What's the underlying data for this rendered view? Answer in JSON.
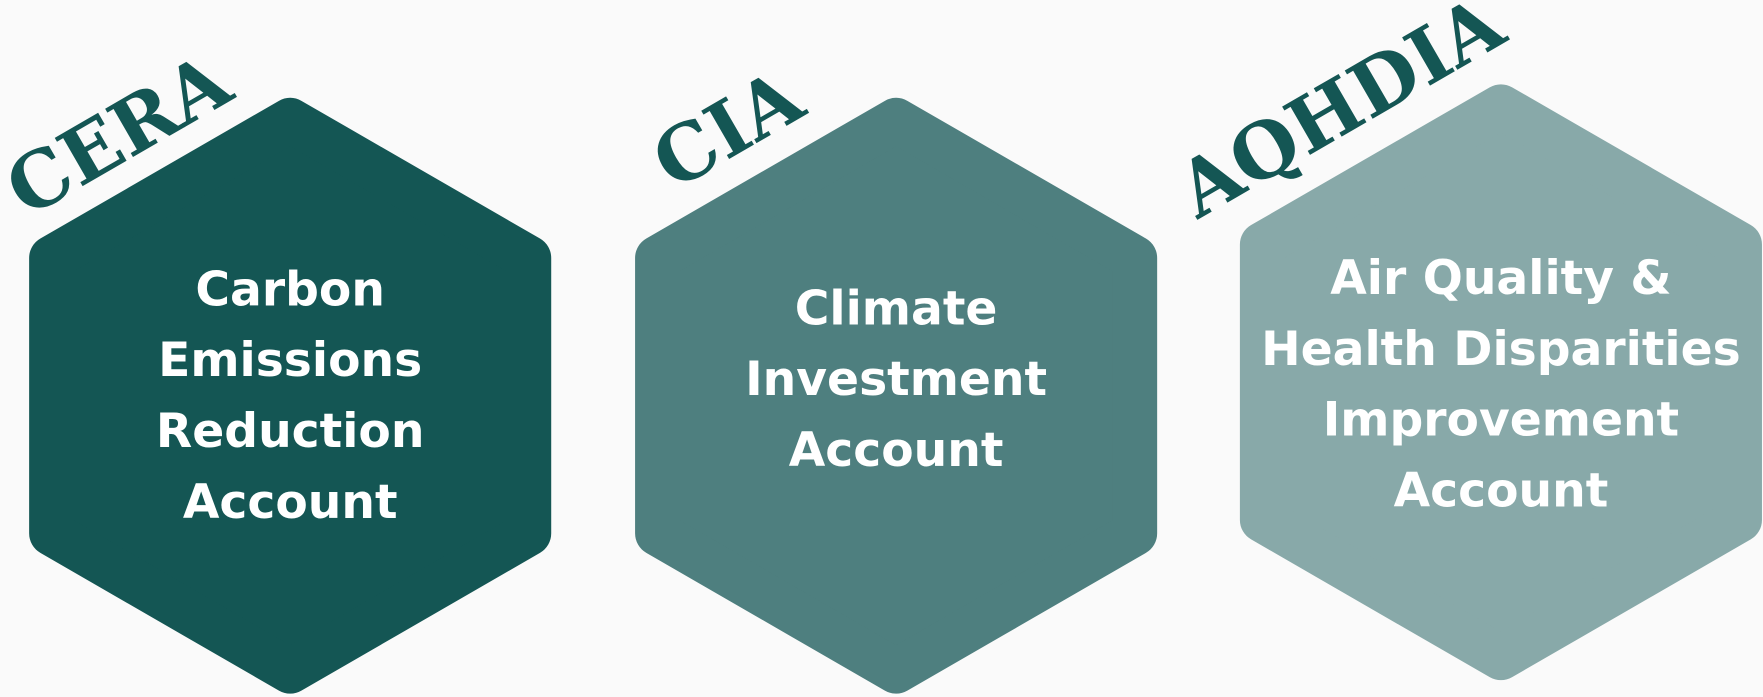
{
  "items": [
    {
      "abbr": "CERA",
      "lines": [
        "Carbon",
        "Emissions",
        "Reduction",
        "Account"
      ]
    },
    {
      "abbr": "CIA",
      "lines": [
        "Climate",
        "Investment",
        "Account"
      ]
    },
    {
      "abbr": "AQHDIA",
      "lines": [
        "Air Quality &",
        "Health Disparities",
        "Improvement",
        "Account"
      ]
    }
  ]
}
